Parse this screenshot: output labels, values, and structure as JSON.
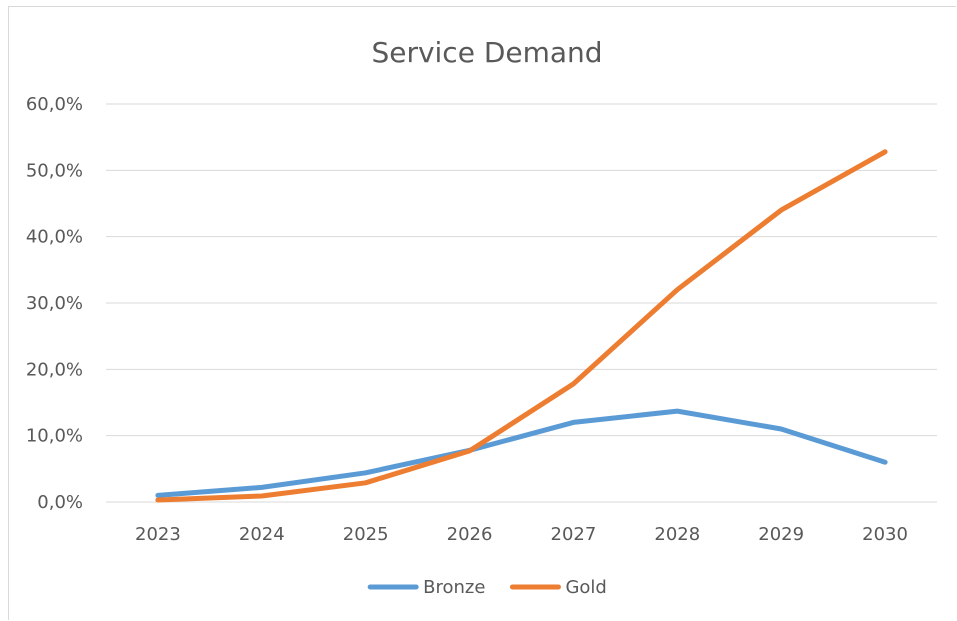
{
  "chart_data": {
    "type": "line",
    "title": "Service Demand",
    "xlabel": "",
    "ylabel": "",
    "categories": [
      "2023",
      "2024",
      "2025",
      "2026",
      "2027",
      "2028",
      "2029",
      "2030"
    ],
    "y_ticks": [
      "0,0%",
      "10,0%",
      "20,0%",
      "30,0%",
      "40,0%",
      "50,0%",
      "60,0%"
    ],
    "ylim": [
      0,
      60
    ],
    "grid": true,
    "legend_position": "bottom",
    "series": [
      {
        "name": "Bronze",
        "color": "#5b9bd5",
        "values": [
          1.0,
          2.2,
          4.4,
          7.8,
          12.0,
          13.7,
          11.0,
          6.0
        ]
      },
      {
        "name": "Gold",
        "color": "#ed7d31",
        "values": [
          0.3,
          0.9,
          2.9,
          7.7,
          17.8,
          32.0,
          44.0,
          52.8
        ]
      }
    ]
  }
}
